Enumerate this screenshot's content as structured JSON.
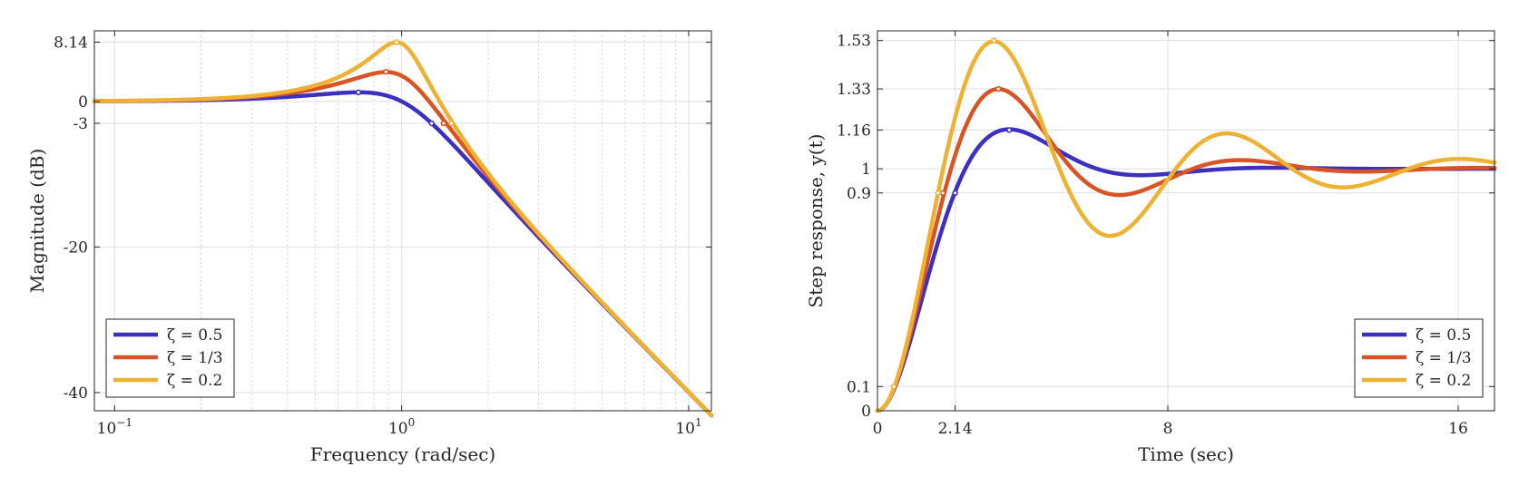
{
  "chart_data": [
    {
      "type": "line",
      "xscale": "log",
      "xlabel": "Frequency (rad/sec)",
      "ylabel": "Magnitude (dB)",
      "xlim": [
        0.085,
        12
      ],
      "ylim": [
        -42.5,
        9.7
      ],
      "xtick_labels": [
        {
          "value": 0.1,
          "base": "10",
          "exp": "−1"
        },
        {
          "value": 1,
          "base": "10",
          "exp": "0"
        },
        {
          "value": 10,
          "base": "10",
          "exp": "1"
        }
      ],
      "yticks": [
        8.14,
        0,
        -3,
        -20,
        -40
      ],
      "ytick_labels": [
        "8.14",
        "0",
        "-3",
        "-20",
        "-40"
      ],
      "grid": true,
      "minor_grid": true,
      "legend_position": "bottom-left",
      "series": [
        {
          "name": "ζ = 0.5",
          "zeta": 0.5,
          "color": "#3b30c0",
          "markers": [
            {
              "x": 0.707,
              "y": 1.25
            },
            {
              "x": 1.272,
              "y": -3
            }
          ]
        },
        {
          "name": "ζ = 1/3",
          "zeta": 0.3333,
          "color": "#d95424",
          "markers": [
            {
              "x": 0.882,
              "y": 4.08
            },
            {
              "x": 1.4,
              "y": -3
            }
          ]
        },
        {
          "name": "ζ = 0.2",
          "zeta": 0.2,
          "color": "#edb234",
          "markers": [
            {
              "x": 0.959,
              "y": 8.14
            },
            {
              "x": 1.49,
              "y": -3
            }
          ]
        }
      ]
    },
    {
      "type": "line",
      "xlabel": "Time (sec)",
      "ylabel": "Step response, y(t)",
      "xlim": [
        0,
        17
      ],
      "ylim": [
        0,
        1.57
      ],
      "xticks": [
        0,
        2.14,
        8,
        16
      ],
      "xtick_labels": [
        "0",
        "2.14",
        "8",
        "16"
      ],
      "yticks": [
        0,
        0.1,
        0.9,
        1,
        1.16,
        1.33,
        1.53
      ],
      "ytick_labels": [
        "0",
        "0.1",
        "0.9",
        "1",
        "1.16",
        "1.33",
        "1.53"
      ],
      "grid": true,
      "legend_position": "bottom-right",
      "series": [
        {
          "name": "ζ = 0.5",
          "zeta": 0.5,
          "color": "#3b30c0",
          "markers": [
            {
              "x": 2.14,
              "y": 0.9
            },
            {
              "x": 3.63,
              "y": 1.16
            }
          ]
        },
        {
          "name": "ζ = 1/3",
          "zeta": 0.3333,
          "color": "#d95424",
          "markers": [
            {
              "x": 1.8,
              "y": 0.9
            },
            {
              "x": 3.33,
              "y": 1.33
            }
          ]
        },
        {
          "name": "ζ = 0.2",
          "zeta": 0.2,
          "color": "#edb234",
          "markers": [
            {
              "x": 0.45,
              "y": 0.1
            },
            {
              "x": 1.67,
              "y": 0.9
            },
            {
              "x": 3.21,
              "y": 1.53
            }
          ]
        }
      ]
    }
  ]
}
